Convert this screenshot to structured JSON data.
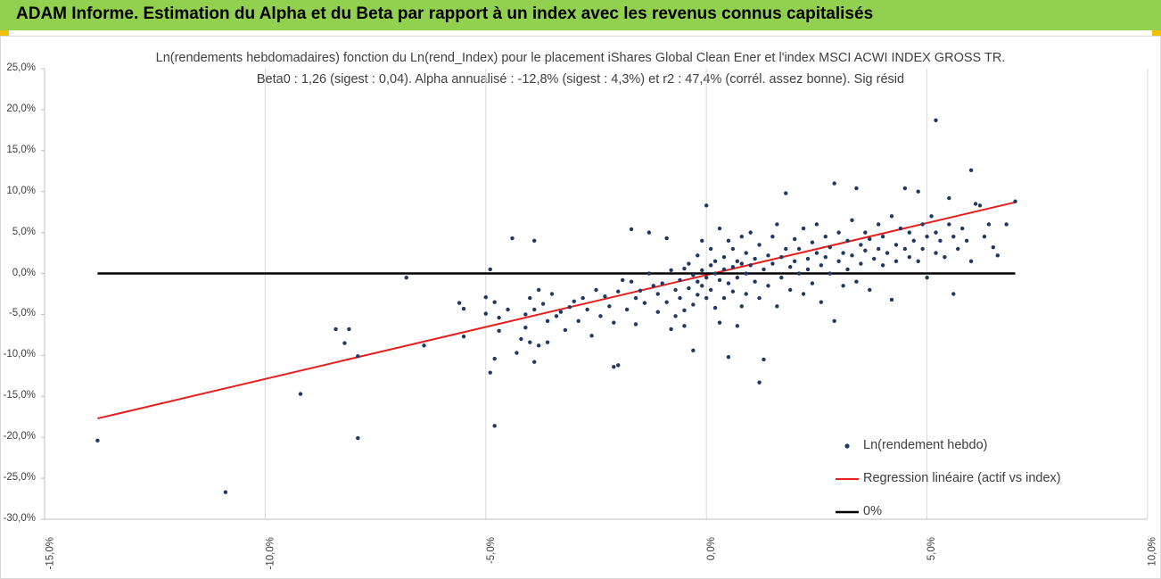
{
  "banner": {
    "title": "ADAM Informe. Estimation du Alpha et du Beta par rapport à un index avec les revenus connus capitalisés",
    "background": "#92d050",
    "accent": "#f2c200"
  },
  "chart_data": {
    "type": "scatter",
    "title": "Ln(rendements hebdomadaires) fonction du Ln(rend_Index) pour le placement iShares Global Clean Ener et l'index MSCI ACWI INDEX GROSS TR.",
    "subtitle": "Beta0 : 1,26 (sigest : 0,04).  Alpha annualisé : -12,8% (sigest : 4,3%) et r2 : 47,4% (corrél. assez bonne). Sig résid",
    "xlabel": "",
    "ylabel": "",
    "xlim": [
      -0.15,
      0.1
    ],
    "ylim": [
      -0.3,
      0.25
    ],
    "x_ticks": [
      "-15,0%",
      "-10,0%",
      "-5,0%",
      "0,0%",
      "5,0%",
      "10,0%"
    ],
    "y_ticks": [
      "25,0%",
      "20,0%",
      "15,0%",
      "10,0%",
      "5,0%",
      "0,0%",
      "-5,0%",
      "-10,0%",
      "-15,0%",
      "-20,0%",
      "-25,0%",
      "-30,0%"
    ],
    "grid": "vertical",
    "legend_position": "bottom-right",
    "series": [
      {
        "name": "Ln(rendement hebdo)",
        "kind": "scatter",
        "color": "#1f3864",
        "points": [
          [
            -0.138,
            -0.204
          ],
          [
            -0.109,
            -0.267
          ],
          [
            -0.092,
            -0.147
          ],
          [
            -0.084,
            -0.068
          ],
          [
            -0.082,
            -0.085
          ],
          [
            -0.081,
            -0.068
          ],
          [
            -0.079,
            -0.201
          ],
          [
            -0.079,
            -0.101
          ],
          [
            -0.068,
            -0.005
          ],
          [
            -0.064,
            -0.088
          ],
          [
            -0.056,
            -0.036
          ],
          [
            -0.055,
            -0.043
          ],
          [
            -0.055,
            -0.077
          ],
          [
            -0.05,
            -0.029
          ],
          [
            -0.05,
            -0.049
          ],
          [
            -0.049,
            0.005
          ],
          [
            -0.049,
            -0.121
          ],
          [
            -0.048,
            -0.035
          ],
          [
            -0.048,
            -0.186
          ],
          [
            -0.048,
            -0.104
          ],
          [
            -0.047,
            -0.07
          ],
          [
            -0.047,
            -0.054
          ],
          [
            -0.045,
            -0.044
          ],
          [
            -0.044,
            0.043
          ],
          [
            -0.043,
            -0.097
          ],
          [
            -0.042,
            -0.08
          ],
          [
            -0.041,
            -0.05
          ],
          [
            -0.041,
            -0.066
          ],
          [
            -0.04,
            -0.03
          ],
          [
            -0.04,
            -0.084
          ],
          [
            -0.039,
            -0.044
          ],
          [
            -0.039,
            0.04
          ],
          [
            -0.039,
            -0.108
          ],
          [
            -0.038,
            -0.088
          ],
          [
            -0.038,
            -0.02
          ],
          [
            -0.037,
            -0.037
          ],
          [
            -0.036,
            -0.084
          ],
          [
            -0.036,
            -0.058
          ],
          [
            -0.035,
            -0.025
          ],
          [
            -0.034,
            -0.052
          ],
          [
            -0.033,
            -0.047
          ],
          [
            -0.032,
            -0.069
          ],
          [
            -0.031,
            -0.041
          ],
          [
            -0.03,
            -0.034
          ],
          [
            -0.029,
            -0.058
          ],
          [
            -0.028,
            -0.03
          ],
          [
            -0.027,
            -0.044
          ],
          [
            -0.026,
            -0.076
          ],
          [
            -0.025,
            -0.02
          ],
          [
            -0.024,
            -0.052
          ],
          [
            -0.023,
            -0.028
          ],
          [
            -0.022,
            -0.04
          ],
          [
            -0.021,
            -0.06
          ],
          [
            -0.021,
            -0.114
          ],
          [
            -0.02,
            -0.112
          ],
          [
            -0.02,
            -0.022
          ],
          [
            -0.019,
            -0.008
          ],
          [
            -0.018,
            -0.044
          ],
          [
            -0.017,
            -0.01
          ],
          [
            -0.017,
            0.054
          ],
          [
            -0.016,
            -0.03
          ],
          [
            -0.016,
            -0.062
          ],
          [
            -0.015,
            -0.021
          ],
          [
            -0.014,
            -0.036
          ],
          [
            -0.013,
            0.0
          ],
          [
            -0.013,
            0.05
          ],
          [
            -0.012,
            -0.015
          ],
          [
            -0.011,
            -0.047
          ],
          [
            -0.011,
            -0.025
          ],
          [
            -0.01,
            -0.012
          ],
          [
            -0.009,
            -0.035
          ],
          [
            -0.009,
            0.043
          ],
          [
            -0.008,
            0.004
          ],
          [
            -0.008,
            -0.068
          ],
          [
            -0.007,
            -0.02
          ],
          [
            -0.007,
            -0.052
          ],
          [
            -0.006,
            -0.008
          ],
          [
            -0.006,
            -0.03
          ],
          [
            -0.005,
            0.006
          ],
          [
            -0.005,
            -0.045
          ],
          [
            -0.005,
            -0.064
          ],
          [
            -0.004,
            -0.018
          ],
          [
            -0.004,
            0.012
          ],
          [
            -0.003,
            -0.002
          ],
          [
            -0.003,
            -0.038
          ],
          [
            -0.003,
            -0.094
          ],
          [
            -0.002,
            -0.01
          ],
          [
            -0.002,
            0.022
          ],
          [
            -0.002,
            -0.026
          ],
          [
            -0.001,
            0.004
          ],
          [
            -0.001,
            -0.015
          ],
          [
            -0.001,
            0.04
          ],
          [
            0.0,
            -0.005
          ],
          [
            0.0,
            -0.03
          ],
          [
            0.0,
            0.083
          ],
          [
            0.001,
            0.01
          ],
          [
            0.001,
            -0.02
          ],
          [
            0.001,
            0.03
          ],
          [
            0.002,
            -0.042
          ],
          [
            0.002,
            0.0
          ],
          [
            0.002,
            0.015
          ],
          [
            0.003,
            -0.008
          ],
          [
            0.003,
            0.055
          ],
          [
            0.003,
            -0.06
          ],
          [
            0.004,
            0.005
          ],
          [
            0.004,
            -0.03
          ],
          [
            0.004,
            0.02
          ],
          [
            0.005,
            -0.012
          ],
          [
            0.005,
            0.04
          ],
          [
            0.005,
            -0.102
          ],
          [
            0.006,
            0.008
          ],
          [
            0.006,
            -0.022
          ],
          [
            0.006,
            0.03
          ],
          [
            0.007,
            -0.005
          ],
          [
            0.007,
            0.015
          ],
          [
            0.007,
            -0.064
          ],
          [
            0.008,
            0.012
          ],
          [
            0.008,
            -0.04
          ],
          [
            0.008,
            0.045
          ],
          [
            0.009,
            0.0
          ],
          [
            0.009,
            0.025
          ],
          [
            0.009,
            -0.025
          ],
          [
            0.01,
            0.01
          ],
          [
            0.01,
            0.05
          ],
          [
            0.011,
            -0.01
          ],
          [
            0.011,
            0.018
          ],
          [
            0.012,
            -0.03
          ],
          [
            0.012,
            0.035
          ],
          [
            0.012,
            -0.133
          ],
          [
            0.013,
            0.005
          ],
          [
            0.013,
            -0.105
          ],
          [
            0.014,
            0.022
          ],
          [
            0.014,
            -0.015
          ],
          [
            0.015,
            0.045
          ],
          [
            0.015,
            0.012
          ],
          [
            0.016,
            -0.04
          ],
          [
            0.016,
            0.06
          ],
          [
            0.017,
            0.02
          ],
          [
            0.017,
            -0.005
          ],
          [
            0.018,
            0.03
          ],
          [
            0.018,
            0.098
          ],
          [
            0.019,
            0.008
          ],
          [
            0.019,
            -0.02
          ],
          [
            0.02,
            0.042
          ],
          [
            0.02,
            0.015
          ],
          [
            0.021,
            0.0
          ],
          [
            0.021,
            0.03
          ],
          [
            0.022,
            -0.025
          ],
          [
            0.022,
            0.055
          ],
          [
            0.023,
            0.018
          ],
          [
            0.023,
            0.005
          ],
          [
            0.024,
            0.038
          ],
          [
            0.024,
            -0.012
          ],
          [
            0.025,
            0.025
          ],
          [
            0.025,
            0.06
          ],
          [
            0.026,
            0.01
          ],
          [
            0.026,
            -0.035
          ],
          [
            0.027,
            0.045
          ],
          [
            0.027,
            0.02
          ],
          [
            0.028,
            0.0
          ],
          [
            0.028,
            0.032
          ],
          [
            0.029,
            0.11
          ],
          [
            0.029,
            -0.058
          ],
          [
            0.03,
            0.015
          ],
          [
            0.03,
            0.05
          ],
          [
            0.031,
            0.025
          ],
          [
            0.031,
            -0.015
          ],
          [
            0.032,
            0.04
          ],
          [
            0.032,
            0.005
          ],
          [
            0.033,
            0.065
          ],
          [
            0.033,
            0.022
          ],
          [
            0.034,
            0.104
          ],
          [
            0.034,
            -0.01
          ],
          [
            0.035,
            0.035
          ],
          [
            0.035,
            0.012
          ],
          [
            0.036,
            0.05
          ],
          [
            0.036,
            0.028
          ],
          [
            0.037,
            -0.02
          ],
          [
            0.037,
            0.042
          ],
          [
            0.038,
            0.018
          ],
          [
            0.039,
            0.06
          ],
          [
            0.039,
            0.03
          ],
          [
            0.04,
            0.01
          ],
          [
            0.04,
            0.045
          ],
          [
            0.041,
            0.025
          ],
          [
            0.042,
            0.07
          ],
          [
            0.042,
            -0.032
          ],
          [
            0.043,
            0.035
          ],
          [
            0.043,
            0.015
          ],
          [
            0.044,
            0.055
          ],
          [
            0.045,
            0.03
          ],
          [
            0.045,
            0.104
          ],
          [
            0.046,
            0.02
          ],
          [
            0.046,
            0.05
          ],
          [
            0.047,
            0.04
          ],
          [
            0.048,
            0.1
          ],
          [
            0.048,
            0.015
          ],
          [
            0.049,
            0.06
          ],
          [
            0.049,
            0.03
          ],
          [
            0.05,
            0.045
          ],
          [
            0.05,
            -0.005
          ],
          [
            0.051,
            0.07
          ],
          [
            0.052,
            0.025
          ],
          [
            0.052,
            0.05
          ],
          [
            0.053,
            0.04
          ],
          [
            0.054,
            0.02
          ],
          [
            0.055,
            0.06
          ],
          [
            0.056,
            0.045
          ],
          [
            0.056,
            -0.025
          ],
          [
            0.057,
            0.03
          ],
          [
            0.058,
            0.055
          ],
          [
            0.059,
            0.04
          ],
          [
            0.06,
            0.015
          ],
          [
            0.06,
            0.126
          ],
          [
            0.061,
            0.085
          ],
          [
            0.062,
            0.083
          ],
          [
            0.063,
            0.045
          ],
          [
            0.064,
            0.06
          ],
          [
            0.065,
            0.032
          ],
          [
            0.066,
            0.022
          ],
          [
            0.068,
            0.06
          ],
          [
            0.052,
            0.187
          ],
          [
            0.055,
            0.092
          ],
          [
            0.07,
            0.088
          ]
        ]
      },
      {
        "name": "Regression linéaire (actif vs index)",
        "kind": "line",
        "color": "#e81e1e",
        "points": [
          [
            -0.138,
            -0.177
          ],
          [
            0.07,
            0.087
          ]
        ]
      },
      {
        "name": "0%",
        "kind": "line",
        "color": "#000000",
        "points": [
          [
            -0.138,
            0.0
          ],
          [
            0.07,
            0.0
          ]
        ]
      }
    ]
  }
}
